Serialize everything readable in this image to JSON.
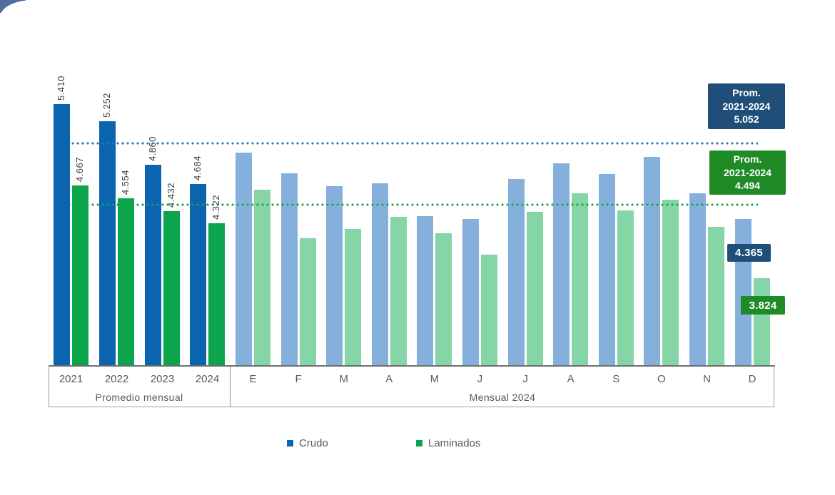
{
  "chart_data": {
    "type": "bar",
    "title": "",
    "legend": [
      {
        "label": "Crudo",
        "color": "#0a64af"
      },
      {
        "label": "Laminados",
        "color": "#0ba64b"
      }
    ],
    "colors": {
      "crudo_avg_bar": "#0a64af",
      "laminados_avg_bar": "#0ba64b",
      "crudo_monthly_bar": "#85b0dc",
      "laminados_monthly_bar": "#85d5a6",
      "crudo_ref_line": "#2e74b5",
      "laminados_ref_line": "#1fa24d",
      "crudo_label_box": "#1f4e79",
      "laminados_label_box": "#1e8b26"
    },
    "groups": [
      {
        "label": "Promedio mensual",
        "categories": [
          "2021",
          "2022",
          "2023",
          "2024"
        ],
        "series": [
          {
            "name": "Crudo",
            "values": [
              5410,
              5252,
              4860,
              4684
            ],
            "display_labels": [
              "5.410",
              "5.252",
              "4.860",
              "4.684"
            ]
          },
          {
            "name": "Laminados",
            "values": [
              4667,
              4554,
              4432,
              4322
            ],
            "display_labels": [
              "4.667",
              "4.554",
              "4.432",
              "4.322"
            ]
          }
        ]
      },
      {
        "label": "Mensual 2024",
        "categories": [
          "E",
          "F",
          "M",
          "A",
          "M",
          "J",
          "J",
          "A",
          "S",
          "O",
          "N",
          "D"
        ],
        "series": [
          {
            "name": "Crudo",
            "values": [
              4970,
              4780,
              4665,
              4690,
              4390,
              4365,
              4730,
              4870,
              4770,
              4930,
              4600,
              4365
            ]
          },
          {
            "name": "Laminados",
            "values": [
              4630,
              4190,
              4270,
              4380,
              4230,
              4040,
              4430,
              4600,
              4440,
              4540,
              4290,
              3824
            ]
          }
        ]
      }
    ],
    "reference_lines": [
      {
        "series": "Crudo",
        "value": 5052,
        "box": {
          "line1": "Prom.",
          "line2": "2021-2024",
          "line3": "5.052"
        }
      },
      {
        "series": "Laminados",
        "value": 4494,
        "box": {
          "line1": "Prom.",
          "line2": "2021-2024",
          "line3": "4.494"
        }
      }
    ],
    "callouts": [
      {
        "series": "Crudo",
        "category": "D",
        "label": "4.365"
      },
      {
        "series": "Laminados",
        "category": "D",
        "label": "3.824"
      }
    ],
    "axis": {
      "value_range_shown": [
        3024,
        5410
      ],
      "gridlines": false,
      "legend_position": "bottom"
    }
  }
}
